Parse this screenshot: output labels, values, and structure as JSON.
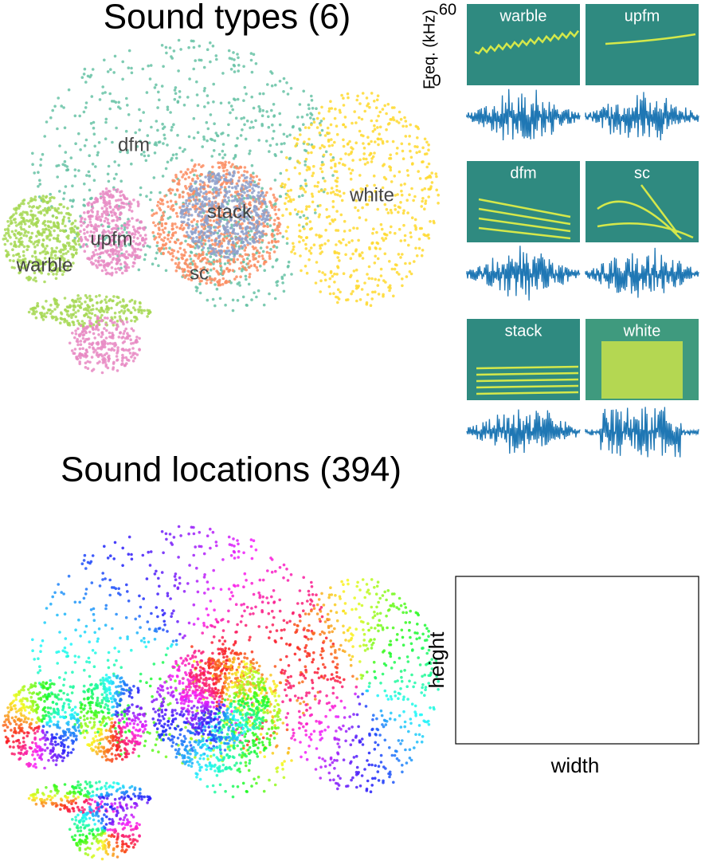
{
  "sound_types": {
    "title": "Sound types (6)",
    "clusters": [
      {
        "label": "dfm"
      },
      {
        "label": "upfm"
      },
      {
        "label": "warble"
      },
      {
        "label": "stack"
      },
      {
        "label": "sc"
      },
      {
        "label": "white"
      }
    ]
  },
  "spectrograms": {
    "y_label": "Freq. (kHz)",
    "y_ticks": [
      60,
      0
    ],
    "panels": [
      {
        "label": "warble"
      },
      {
        "label": "upfm"
      },
      {
        "label": "dfm"
      },
      {
        "label": "sc"
      },
      {
        "label": "stack"
      },
      {
        "label": "white"
      }
    ]
  },
  "sound_locations": {
    "title": "Sound locations (394)",
    "x_label": "width",
    "y_label": "height"
  }
}
